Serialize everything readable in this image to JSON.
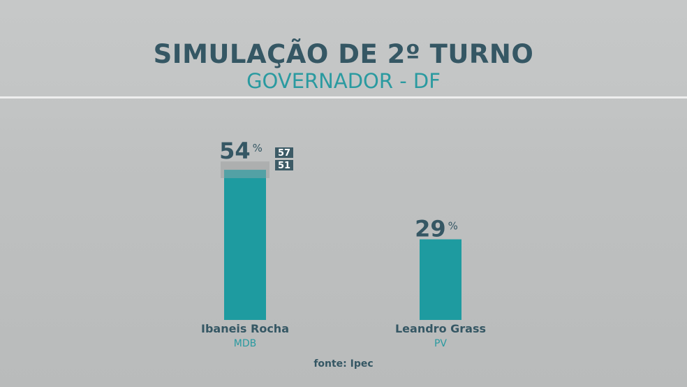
{
  "header": {
    "title": "SIMULAÇÃO DE 2º TURNO",
    "subtitle": "GOVERNADOR - DF"
  },
  "footer": {
    "source": "fonte: Ipec"
  },
  "colors": {
    "bar": "#1e9ba0",
    "title": "#355764",
    "subtitle": "#2a9aa0",
    "range_box": "#3d5b66",
    "range_band": "#a9acac"
  },
  "chart_data": {
    "type": "bar",
    "title": "SIMULAÇÃO DE 2º TURNO",
    "subtitle": "GOVERNADOR - DF",
    "categories": [
      "Ibaneis Rocha",
      "Leandro Grass"
    ],
    "parties": [
      "MDB",
      "PV"
    ],
    "values": [
      54,
      29
    ],
    "unit": "%",
    "ranges": [
      {
        "high": 57,
        "low": 51
      },
      null
    ],
    "ylim": [
      0,
      100
    ],
    "grid": false,
    "legend": "none"
  }
}
